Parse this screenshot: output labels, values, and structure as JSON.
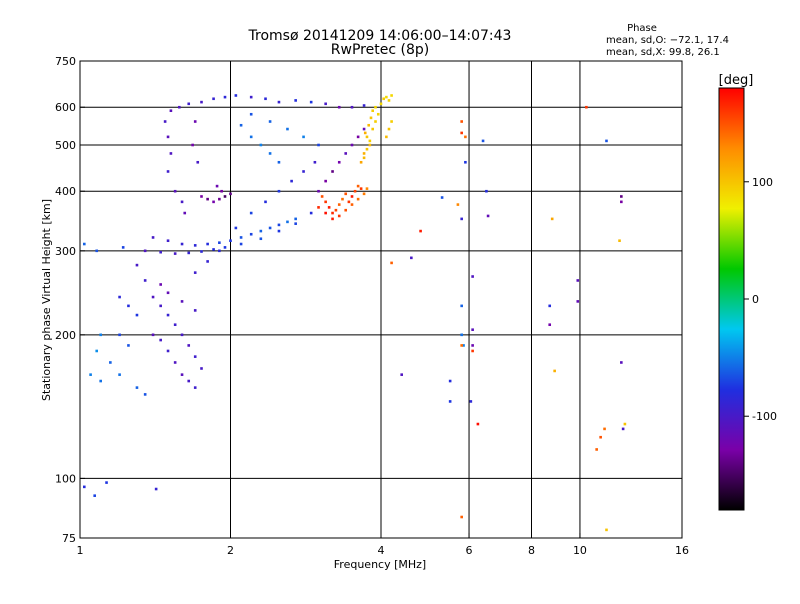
{
  "chart_data": {
    "type": "scatter",
    "title": "Tromsø 20141209 14:06:00–14:07:43",
    "subtitle": "RwPretec (8p)",
    "xlabel": "Frequency [MHz]",
    "ylabel": "Stationary phase Virtual Height [km]",
    "x_scale": "log",
    "y_scale": "log",
    "xlim": [
      1,
      16
    ],
    "ylim": [
      75,
      750
    ],
    "x_ticks": [
      1,
      2,
      4,
      6,
      8,
      10,
      16
    ],
    "y_ticks": [
      75,
      100,
      200,
      300,
      400,
      500,
      600,
      750
    ],
    "grid": true,
    "stats": {
      "heading": "Phase",
      "line_o": "mean, sd,O: −72.1, 17.4",
      "line_x": "mean, sd,X:  99.8, 26.1"
    },
    "colorbar": {
      "label": "[deg]",
      "range": [
        -180,
        180
      ],
      "ticks": [
        100,
        0,
        -100
      ],
      "colors": [
        "#000000",
        "#7a00a8",
        "#1f2fe0",
        "#00c8f0",
        "#00c800",
        "#f0f000",
        "#ff8c00",
        "#ff0000"
      ]
    },
    "series": [
      {
        "points": [
          [
            1.52,
            590,
            -110
          ],
          [
            1.58,
            600,
            -105
          ],
          [
            1.65,
            610,
            -95
          ],
          [
            1.75,
            615,
            -100
          ],
          [
            1.85,
            625,
            -90
          ],
          [
            1.95,
            630,
            -85
          ],
          [
            2.05,
            635,
            -80
          ],
          [
            2.2,
            630,
            -95
          ],
          [
            2.35,
            625,
            -85
          ],
          [
            2.5,
            615,
            -90
          ],
          [
            2.7,
            620,
            -80
          ],
          [
            2.9,
            615,
            -75
          ],
          [
            3.1,
            610,
            -100
          ],
          [
            3.3,
            600,
            -120
          ],
          [
            3.5,
            600,
            -105
          ],
          [
            3.7,
            605,
            -90
          ],
          [
            1.48,
            560,
            -100
          ],
          [
            1.5,
            520,
            -110
          ],
          [
            1.52,
            480,
            -105
          ],
          [
            1.5,
            440,
            -95
          ],
          [
            1.55,
            400,
            -110
          ],
          [
            1.6,
            380,
            -100
          ],
          [
            1.62,
            360,
            -115
          ],
          [
            1.7,
            560,
            -120
          ],
          [
            1.68,
            500,
            -125
          ],
          [
            1.72,
            460,
            -100
          ],
          [
            1.75,
            390,
            -130
          ],
          [
            1.8,
            385,
            -140
          ],
          [
            1.85,
            380,
            -125
          ],
          [
            1.9,
            385,
            -135
          ],
          [
            1.95,
            390,
            -150
          ],
          [
            2.0,
            395,
            -140
          ],
          [
            1.88,
            410,
            -120
          ],
          [
            1.92,
            400,
            -130
          ],
          [
            1.4,
            320,
            -100
          ],
          [
            1.5,
            315,
            -95
          ],
          [
            1.6,
            310,
            -90
          ],
          [
            1.7,
            308,
            -85
          ],
          [
            1.8,
            310,
            -80
          ],
          [
            1.9,
            312,
            -70
          ],
          [
            2.0,
            315,
            -75
          ],
          [
            2.1,
            320,
            -65
          ],
          [
            2.2,
            325,
            -70
          ],
          [
            2.3,
            330,
            -60
          ],
          [
            2.4,
            335,
            -65
          ],
          [
            2.5,
            340,
            -70
          ],
          [
            2.6,
            345,
            -55
          ],
          [
            2.7,
            350,
            -60
          ],
          [
            1.35,
            300,
            -105
          ],
          [
            1.45,
            298,
            -95
          ],
          [
            1.55,
            296,
            -100
          ],
          [
            1.65,
            297,
            -90
          ],
          [
            1.75,
            299,
            -85
          ],
          [
            1.85,
            302,
            -80
          ],
          [
            1.95,
            305,
            -75
          ],
          [
            2.1,
            310,
            -70
          ],
          [
            2.3,
            318,
            -65
          ],
          [
            2.5,
            330,
            -75
          ],
          [
            2.7,
            342,
            -70
          ],
          [
            2.9,
            360,
            -80
          ],
          [
            1.7,
            270,
            -95
          ],
          [
            1.8,
            285,
            -90
          ],
          [
            1.9,
            300,
            -85
          ],
          [
            2.05,
            335,
            -75
          ],
          [
            2.2,
            360,
            -70
          ],
          [
            2.35,
            380,
            -80
          ],
          [
            2.5,
            400,
            -75
          ],
          [
            2.65,
            420,
            -85
          ],
          [
            2.8,
            440,
            -90
          ],
          [
            2.95,
            460,
            -95
          ],
          [
            2.1,
            550,
            -60
          ],
          [
            2.2,
            520,
            -55
          ],
          [
            2.3,
            500,
            -50
          ],
          [
            2.4,
            480,
            -55
          ],
          [
            2.5,
            460,
            -60
          ],
          [
            2.2,
            580,
            -65
          ],
          [
            2.4,
            560,
            -60
          ],
          [
            2.6,
            540,
            -55
          ],
          [
            2.8,
            520,
            -50
          ],
          [
            3.0,
            500,
            -70
          ],
          [
            3.0,
            400,
            -120
          ],
          [
            3.1,
            420,
            -130
          ],
          [
            3.2,
            440,
            -140
          ],
          [
            3.3,
            460,
            -125
          ],
          [
            3.4,
            480,
            -110
          ],
          [
            3.5,
            500,
            -120
          ],
          [
            3.6,
            520,
            -130
          ],
          [
            3.7,
            540,
            -115
          ],
          [
            1.3,
            280,
            -100
          ],
          [
            1.35,
            260,
            -95
          ],
          [
            1.4,
            240,
            -105
          ],
          [
            1.45,
            230,
            -100
          ],
          [
            1.5,
            220,
            -90
          ],
          [
            1.55,
            210,
            -95
          ],
          [
            1.6,
            200,
            -100
          ],
          [
            1.65,
            190,
            -105
          ],
          [
            1.7,
            180,
            -95
          ],
          [
            1.75,
            170,
            -100
          ],
          [
            1.4,
            200,
            -110
          ],
          [
            1.45,
            195,
            -100
          ],
          [
            1.5,
            185,
            -95
          ],
          [
            1.55,
            175,
            -105
          ],
          [
            1.6,
            165,
            -110
          ],
          [
            1.65,
            160,
            -100
          ],
          [
            1.7,
            155,
            -95
          ],
          [
            1.45,
            255,
            -120
          ],
          [
            1.5,
            245,
            -115
          ],
          [
            1.6,
            235,
            -110
          ],
          [
            1.7,
            225,
            -100
          ],
          [
            1.2,
            240,
            -85
          ],
          [
            1.25,
            230,
            -80
          ],
          [
            1.3,
            220,
            -75
          ],
          [
            1.2,
            200,
            -70
          ],
          [
            1.25,
            190,
            -65
          ],
          [
            1.15,
            175,
            -60
          ],
          [
            1.2,
            165,
            -55
          ],
          [
            1.3,
            155,
            -60
          ],
          [
            1.35,
            150,
            -65
          ],
          [
            1.1,
            160,
            -55
          ],
          [
            1.05,
            165,
            -50
          ],
          [
            1.08,
            185,
            -45
          ],
          [
            1.1,
            200,
            -50
          ],
          [
            1.02,
            310,
            -60
          ],
          [
            1.08,
            300,
            -65
          ],
          [
            1.22,
            305,
            -70
          ],
          [
            1.02,
            96,
            -80
          ],
          [
            1.07,
            92,
            -70
          ],
          [
            1.13,
            98,
            -75
          ],
          [
            1.42,
            95,
            -90
          ],
          [
            5.9,
            460,
            -75
          ],
          [
            6.4,
            510,
            -65
          ],
          [
            6.5,
            400,
            -80
          ],
          [
            6.55,
            355,
            -115
          ],
          [
            6.1,
            265,
            -105
          ],
          [
            6.1,
            205,
            -110
          ],
          [
            6.1,
            190,
            -120
          ],
          [
            6.05,
            145,
            -85
          ],
          [
            5.5,
            160,
            -80
          ],
          [
            5.5,
            145,
            -75
          ],
          [
            5.3,
            388,
            -65
          ],
          [
            5.8,
            350,
            -90
          ],
          [
            4.6,
            290,
            -100
          ],
          [
            4.4,
            165,
            -105
          ],
          [
            5.8,
            230,
            -60
          ],
          [
            5.8,
            200,
            -55
          ],
          [
            5.85,
            190,
            -50
          ],
          [
            8.7,
            230,
            -80
          ],
          [
            8.7,
            210,
            -125
          ],
          [
            9.9,
            260,
            -110
          ],
          [
            9.9,
            235,
            -115
          ],
          [
            12.1,
            175,
            -110
          ],
          [
            12.2,
            127,
            -100
          ],
          [
            11.3,
            510,
            -65
          ],
          [
            12.1,
            390,
            -140
          ],
          [
            12.1,
            380,
            -130
          ]
        ]
      },
      {
        "points": [
          [
            3.05,
            390,
            150
          ],
          [
            3.1,
            380,
            160
          ],
          [
            3.15,
            370,
            170
          ],
          [
            3.2,
            360,
            165
          ],
          [
            3.25,
            365,
            155
          ],
          [
            3.3,
            375,
            145
          ],
          [
            3.35,
            385,
            140
          ],
          [
            3.4,
            395,
            150
          ],
          [
            3.45,
            380,
            160
          ],
          [
            3.5,
            390,
            170
          ],
          [
            3.55,
            400,
            155
          ],
          [
            3.6,
            410,
            145
          ],
          [
            3.65,
            405,
            160
          ],
          [
            3.0,
            370,
            165
          ],
          [
            3.1,
            360,
            175
          ],
          [
            3.2,
            350,
            170
          ],
          [
            3.3,
            355,
            160
          ],
          [
            3.4,
            365,
            150
          ],
          [
            3.5,
            375,
            145
          ],
          [
            3.6,
            385,
            140
          ],
          [
            3.7,
            395,
            135
          ],
          [
            3.75,
            405,
            130
          ],
          [
            3.7,
            470,
            105
          ],
          [
            3.75,
            490,
            100
          ],
          [
            3.8,
            510,
            95
          ],
          [
            3.72,
            530,
            110
          ],
          [
            3.78,
            550,
            105
          ],
          [
            3.82,
            570,
            100
          ],
          [
            3.85,
            590,
            95
          ],
          [
            3.9,
            600,
            90
          ],
          [
            3.65,
            460,
            115
          ],
          [
            3.7,
            480,
            110
          ],
          [
            3.8,
            500,
            105
          ],
          [
            3.75,
            520,
            100
          ],
          [
            3.85,
            540,
            98
          ],
          [
            3.9,
            560,
            95
          ],
          [
            3.95,
            580,
            92
          ],
          [
            4.0,
            610,
            90
          ],
          [
            4.05,
            625,
            95
          ],
          [
            4.1,
            630,
            88
          ],
          [
            4.15,
            620,
            92
          ],
          [
            4.2,
            635,
            90
          ],
          [
            4.1,
            520,
            105
          ],
          [
            4.15,
            540,
            100
          ],
          [
            4.2,
            560,
            95
          ],
          [
            5.8,
            560,
            150
          ],
          [
            5.8,
            530,
            160
          ],
          [
            5.9,
            520,
            140
          ],
          [
            4.2,
            283,
            145
          ],
          [
            4.8,
            330,
            170
          ],
          [
            5.7,
            375,
            130
          ],
          [
            5.8,
            190,
            140
          ],
          [
            6.25,
            130,
            175
          ],
          [
            6.1,
            185,
            160
          ],
          [
            5.8,
            83,
            145
          ],
          [
            8.8,
            350,
            115
          ],
          [
            8.9,
            168,
            110
          ],
          [
            10.3,
            600,
            160
          ],
          [
            10.8,
            115,
            145
          ],
          [
            11.0,
            122,
            150
          ],
          [
            11.2,
            127,
            140
          ],
          [
            11.3,
            78,
            100
          ],
          [
            12.0,
            315,
            105
          ],
          [
            12.3,
            130,
            100
          ]
        ]
      }
    ]
  }
}
